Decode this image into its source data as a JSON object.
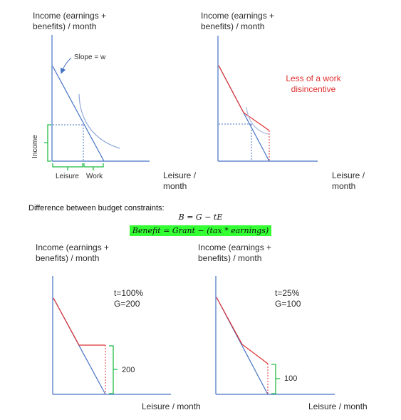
{
  "panels": {
    "tl": {
      "ylabel": "Income (earnings +\nbenefits) / month",
      "xlabel": "Leisure /\nmonth",
      "slope_label": "Slope = w",
      "income_label": "Income",
      "leisure_label": "Leisure",
      "work_label": "Work"
    },
    "tr": {
      "ylabel": "Income (earnings +\nbenefits) / month",
      "xlabel": "Leisure /\nmonth",
      "note": "Less of a work\ndisincentive"
    },
    "bl": {
      "ylabel": "Income (earnings +\nbenefits) / month",
      "xlabel": "Leisure / month",
      "t_label": "t=100%",
      "g_label": "G=200",
      "brace_value": "200"
    },
    "br": {
      "ylabel": "Income (earnings +\nbenefits) / month",
      "xlabel": "Leisure / month",
      "t_label": "t=25%",
      "g_label": "G=100",
      "brace_value": "100"
    }
  },
  "difference_text": "Difference between budget constraints:",
  "equation": "B = G − tE",
  "equation_words": "Benefit = Grant − (tax * earnings)",
  "colors": {
    "axis": "#4472c4",
    "budget": "#4472c4",
    "benefit": "#e03030",
    "brace": "#22bb44",
    "highlight": "#33ff33"
  }
}
